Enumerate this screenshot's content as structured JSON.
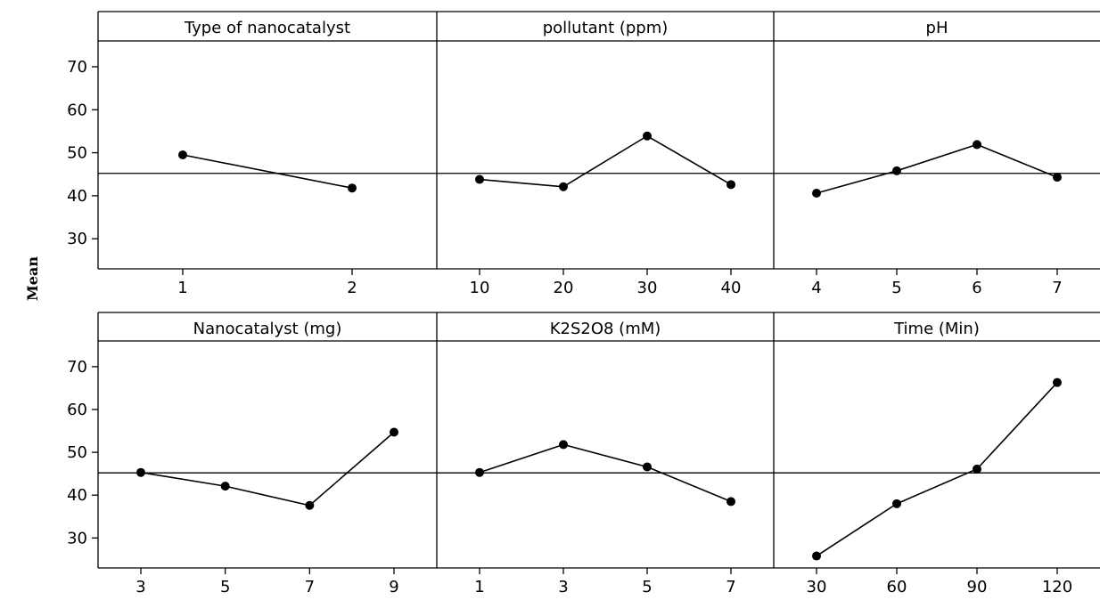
{
  "chart_data": {
    "type": "line",
    "y_axis_label": "Mean",
    "ylim": [
      23,
      76
    ],
    "yticks": [
      30,
      40,
      50,
      60,
      70
    ],
    "reference_line": 45.2,
    "grid": false,
    "panels": [
      {
        "title": "Type of nanocatalyst",
        "x": [
          1,
          2
        ],
        "x_tick_labels": [
          "1",
          "2"
        ],
        "values": [
          49.5,
          41.8
        ]
      },
      {
        "title": "pollutant (ppm)",
        "x": [
          10,
          20,
          30,
          40
        ],
        "x_tick_labels": [
          "10",
          "20",
          "30",
          "40"
        ],
        "values": [
          43.8,
          42.1,
          53.9,
          42.6
        ]
      },
      {
        "title": "pH",
        "x": [
          4,
          5,
          6,
          7
        ],
        "x_tick_labels": [
          "4",
          "5",
          "6",
          "7"
        ],
        "values": [
          40.6,
          45.8,
          51.9,
          44.3
        ]
      },
      {
        "title": "Nanocatalyst (mg)",
        "x": [
          3,
          5,
          7,
          9
        ],
        "x_tick_labels": [
          "3",
          "5",
          "7",
          "9"
        ],
        "values": [
          45.3,
          42.1,
          37.6,
          54.7
        ]
      },
      {
        "title": "K2S2O8 (mM)",
        "x": [
          1,
          3,
          5,
          7
        ],
        "x_tick_labels": [
          "1",
          "3",
          "5",
          "7"
        ],
        "values": [
          45.3,
          51.8,
          46.6,
          38.5
        ]
      },
      {
        "title": "Time (Min)",
        "x": [
          30,
          60,
          90,
          120
        ],
        "x_tick_labels": [
          "30",
          "60",
          "90",
          "120"
        ],
        "values": [
          25.8,
          38.0,
          46.1,
          66.3
        ]
      }
    ]
  }
}
